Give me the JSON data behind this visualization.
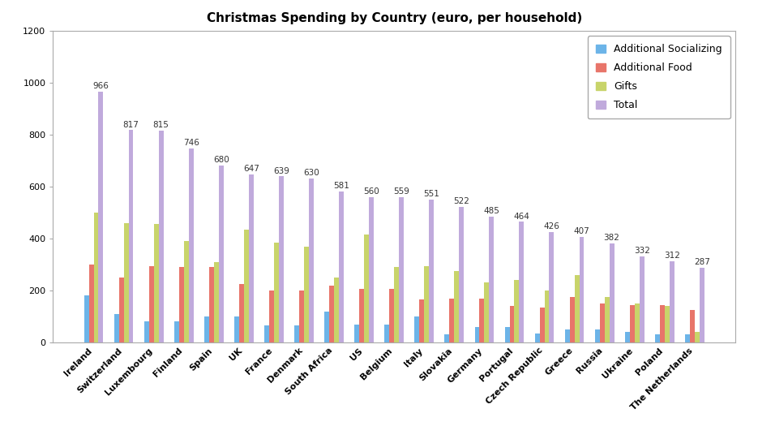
{
  "title": "Christmas Spending by Country (euro, per household)",
  "categories": [
    "Ireland",
    "Switzerland",
    "Luxembourg",
    "Finland",
    "Spain",
    "UK",
    "France",
    "Denmark",
    "South Africa",
    "US",
    "Belgium",
    "Italy",
    "Slovakia",
    "Germany",
    "Portugal",
    "Czech Republic",
    "Greece",
    "Russia",
    "Ukraine",
    "Poland",
    "The Netherlands"
  ],
  "series": {
    "Additional Socializing": [
      180,
      110,
      80,
      80,
      100,
      100,
      65,
      65,
      120,
      70,
      70,
      100,
      30,
      60,
      60,
      35,
      50,
      50,
      40,
      30,
      30
    ],
    "Additional Food": [
      300,
      250,
      295,
      290,
      290,
      225,
      200,
      200,
      220,
      205,
      205,
      165,
      170,
      170,
      140,
      135,
      175,
      150,
      145,
      145,
      125
    ],
    "Gifts": [
      500,
      460,
      455,
      390,
      310,
      435,
      385,
      370,
      250,
      415,
      290,
      295,
      275,
      230,
      240,
      200,
      260,
      175,
      150,
      140,
      40
    ],
    "Total": [
      966,
      817,
      815,
      746,
      680,
      647,
      639,
      630,
      581,
      560,
      559,
      551,
      522,
      485,
      464,
      426,
      407,
      382,
      332,
      312,
      287
    ]
  },
  "total_labels": [
    966,
    817,
    815,
    746,
    680,
    647,
    639,
    630,
    581,
    560,
    559,
    551,
    522,
    485,
    464,
    426,
    407,
    382,
    332,
    312,
    287
  ],
  "colors": {
    "Additional Socializing": "#6CB4E8",
    "Additional Food": "#E8756A",
    "Gifts": "#C8D46A",
    "Total": "#C0AADC"
  },
  "ylim": [
    0,
    1200
  ],
  "yticks": [
    0,
    200,
    400,
    600,
    800,
    1000,
    1200
  ],
  "background_color": "#FFFFFF",
  "plot_bg_color": "#FFFFFF",
  "title_fontsize": 11,
  "legend_fontsize": 9,
  "tick_fontsize": 8,
  "label_fontsize": 7.5,
  "bar_width": 0.16
}
